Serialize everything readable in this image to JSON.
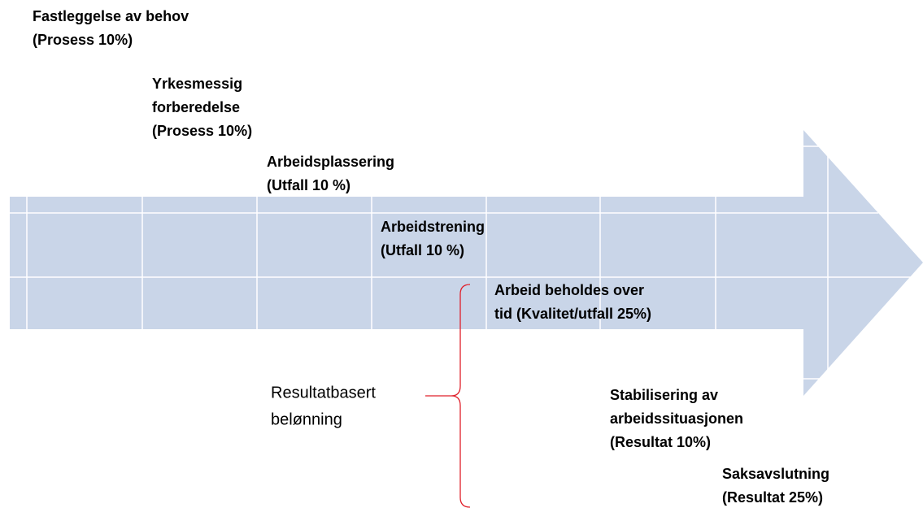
{
  "steps": [
    {
      "lines": [
        "Fastleggelse av behov",
        "(Prosess 10%)"
      ]
    },
    {
      "lines": [
        "Yrkesmessig",
        "forberedelse",
        "(Prosess 10%)"
      ]
    },
    {
      "lines": [
        "Arbeidsplassering",
        "(Utfall 10 %)"
      ]
    },
    {
      "lines": [
        "Arbeidstrening",
        "(Utfall 10 %)"
      ]
    },
    {
      "lines": [
        "Arbeid beholdes over",
        "tid (Kvalitet/utfall 25%)"
      ]
    },
    {
      "lines": [
        "Stabilisering av",
        "arbeidssituasjonen",
        "(Resultat 10%)"
      ]
    },
    {
      "lines": [
        "Saksavslutning",
        "(Resultat 25%)"
      ]
    }
  ],
  "brace_label": {
    "lines": [
      "Resultatbasert",
      "belønning"
    ]
  }
}
